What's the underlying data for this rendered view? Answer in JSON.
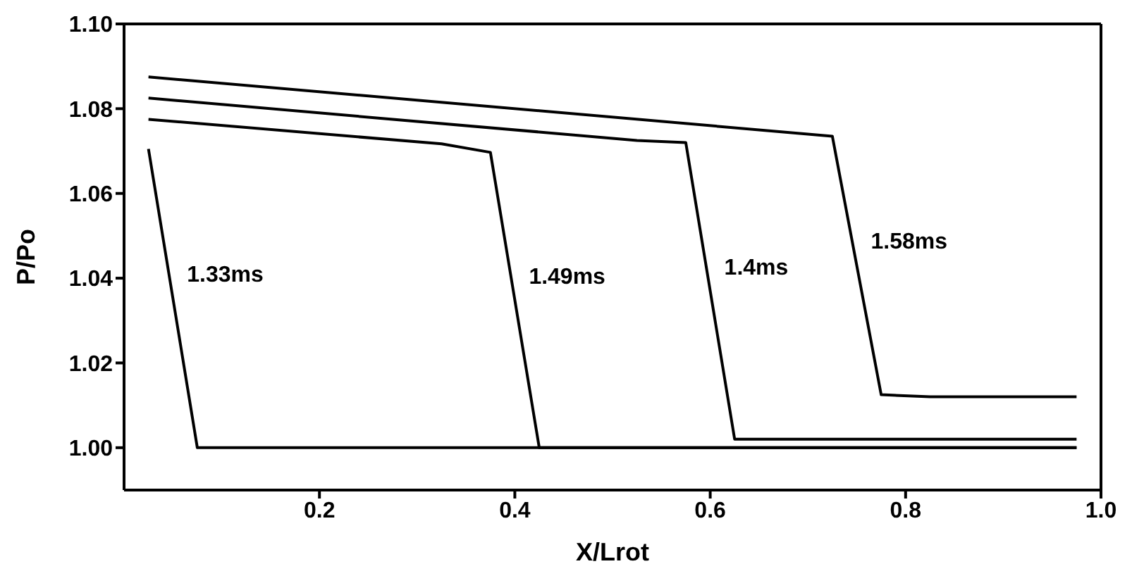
{
  "chart_data": {
    "type": "line",
    "xlabel": "X/Lrot",
    "ylabel": "P/Po",
    "xlim": [
      0,
      1.0
    ],
    "xticks": [
      0.2,
      0.4,
      0.6,
      0.8,
      {
        "value": 1.0,
        "label": "1.0"
      }
    ],
    "ylim": [
      0.99,
      1.1
    ],
    "yticks": [
      {
        "value": 1.0,
        "label": "1.00"
      },
      1.02,
      1.04,
      1.06,
      1.08,
      {
        "value": 1.1,
        "label": "1.10"
      }
    ],
    "grid": false,
    "legend": false,
    "marker": "none",
    "line_style": "solid",
    "series": [
      {
        "name": "1.33ms",
        "color": "#000000",
        "x": [
          0.025,
          0.075,
          0.975
        ],
        "values": [
          1.0705,
          1.0,
          1.0
        ]
      },
      {
        "name": "1.49ms",
        "color": "#000000",
        "x": [
          0.025,
          0.325,
          0.375,
          0.425,
          0.975
        ],
        "values": [
          1.0775,
          1.0717,
          1.0697,
          1.0,
          1.0
        ]
      },
      {
        "name": "1.4ms",
        "color": "#000000",
        "x": [
          0.025,
          0.525,
          0.575,
          0.625,
          0.975
        ],
        "values": [
          1.0825,
          1.0725,
          1.072,
          1.002,
          1.002
        ]
      },
      {
        "name": "1.58ms",
        "color": "#000000",
        "x": [
          0.025,
          0.725,
          0.775,
          0.825,
          0.975
        ],
        "values": [
          1.0875,
          1.0735,
          1.0125,
          1.012,
          1.012
        ]
      }
    ]
  }
}
